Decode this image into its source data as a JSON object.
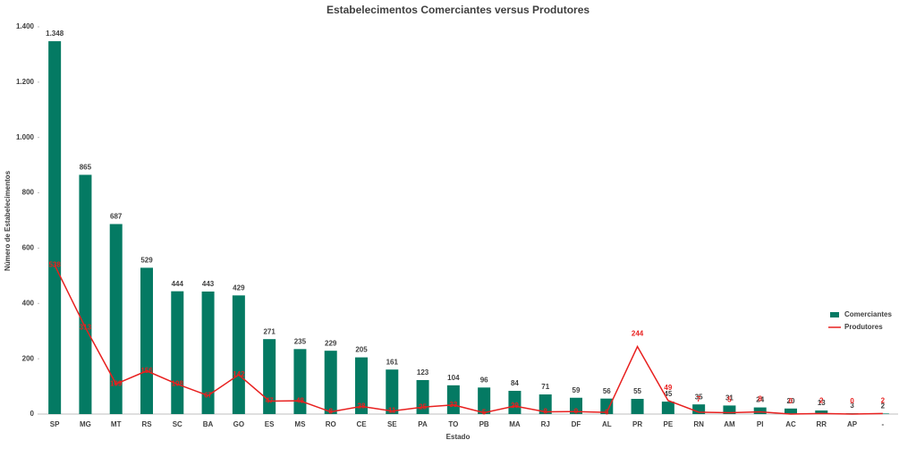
{
  "chart_data": {
    "type": "bar",
    "title": "Estabelecimentos Comerciantes versus Produtores",
    "x_label": "Estado",
    "y_label": "Número de Estabelecimentos",
    "categories": [
      "SP",
      "MG",
      "MT",
      "RS",
      "SC",
      "BA",
      "GO",
      "ES",
      "MS",
      "RO",
      "CE",
      "SE",
      "PA",
      "TO",
      "PB",
      "MA",
      "RJ",
      "DF",
      "AL",
      "PR",
      "PE",
      "RN",
      "AM",
      "PI",
      "AC",
      "RR",
      "AP",
      "-"
    ],
    "series": [
      {
        "name": "Comerciantes",
        "type": "bar",
        "color": "#047a63",
        "values": [
          1348,
          865,
          687,
          529,
          444,
          443,
          429,
          271,
          235,
          229,
          205,
          161,
          123,
          104,
          96,
          84,
          71,
          59,
          56,
          55,
          45,
          35,
          31,
          24,
          20,
          13,
          3,
          2
        ],
        "value_labels": [
          "1.348",
          "865",
          "687",
          "529",
          "444",
          "443",
          "429",
          "271",
          "235",
          "229",
          "205",
          "161",
          "123",
          "104",
          "96",
          "84",
          "71",
          "59",
          "56",
          "55",
          "45",
          "35",
          "31",
          "24",
          "20",
          "13",
          "3",
          "2"
        ]
      },
      {
        "name": "Produtores",
        "type": "line",
        "color": "#e8201f",
        "values": [
          538,
          313,
          109,
          156,
          108,
          67,
          142,
          47,
          48,
          8,
          28,
          11,
          25,
          33,
          5,
          29,
          8,
          9,
          6,
          244,
          49,
          7,
          5,
          8,
          0,
          2,
          0,
          2
        ]
      }
    ],
    "ylim": [
      0,
      1400
    ],
    "yticks": [
      0,
      200,
      400,
      600,
      800,
      {
        "value": 1000,
        "label": "1.000"
      },
      {
        "value": 1200,
        "label": "1.200"
      },
      {
        "value": 1400,
        "label": "1.400"
      }
    ],
    "legend": "right"
  }
}
